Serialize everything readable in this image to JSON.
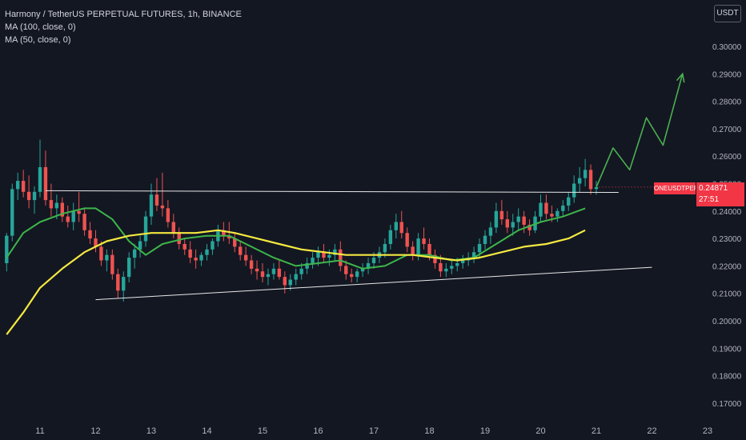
{
  "legend": {
    "title": "Harmony / TetherUS PERPETUAL FUTURES, 1h, BINANCE",
    "ma100": "MA (100, close, 0)",
    "ma50": "MA (50, close, 0)"
  },
  "currency_label": "USDT",
  "price_tag": {
    "symbol": "ONEUSDTPERP",
    "price": "0.24871",
    "countdown": "27:51"
  },
  "colors": {
    "background": "#131722",
    "up": "#26a69a",
    "down": "#ef5350",
    "ma50": "#3eb54a",
    "ma100": "#f5e940",
    "forecast": "#4caf50",
    "trendline": "#e8e8e8",
    "price_tag": "#f23645"
  },
  "chart_data": {
    "type": "candlestick",
    "title": "Harmony / TetherUS PERPETUAL FUTURES, 1h, BINANCE",
    "x_ticks": [
      "11",
      "12",
      "13",
      "14",
      "15",
      "16",
      "17",
      "18",
      "19",
      "20",
      "21",
      "22",
      "23"
    ],
    "y_ticks": [
      "0.30000",
      "0.29000",
      "0.28000",
      "0.27000",
      "0.26000",
      "0.25000",
      "0.24000",
      "0.23000",
      "0.22000",
      "0.21000",
      "0.20000",
      "0.19000",
      "0.18000",
      "0.17000"
    ],
    "ylim": [
      0.165,
      0.312
    ],
    "xlim": [
      10.4,
      23.6
    ],
    "last_price": 0.24871,
    "candles_approx": [
      [
        10.4,
        0.221,
        0.232,
        0.218,
        0.231
      ],
      [
        10.5,
        0.231,
        0.25,
        0.229,
        0.248
      ],
      [
        10.6,
        0.248,
        0.254,
        0.244,
        0.251
      ],
      [
        10.7,
        0.251,
        0.255,
        0.245,
        0.247
      ],
      [
        10.8,
        0.247,
        0.253,
        0.241,
        0.244
      ],
      [
        10.9,
        0.244,
        0.249,
        0.239,
        0.247
      ],
      [
        11.0,
        0.247,
        0.266,
        0.245,
        0.256
      ],
      [
        11.1,
        0.256,
        0.262,
        0.242,
        0.244
      ],
      [
        11.2,
        0.244,
        0.25,
        0.238,
        0.241
      ],
      [
        11.3,
        0.241,
        0.246,
        0.237,
        0.243
      ],
      [
        11.4,
        0.243,
        0.245,
        0.236,
        0.238
      ],
      [
        11.5,
        0.238,
        0.242,
        0.234,
        0.236
      ],
      [
        11.6,
        0.236,
        0.243,
        0.233,
        0.24
      ],
      [
        11.7,
        0.24,
        0.247,
        0.236,
        0.239
      ],
      [
        11.8,
        0.239,
        0.241,
        0.231,
        0.233
      ],
      [
        11.9,
        0.233,
        0.236,
        0.228,
        0.23
      ],
      [
        12.0,
        0.23,
        0.233,
        0.225,
        0.227
      ],
      [
        12.1,
        0.227,
        0.229,
        0.22,
        0.222
      ],
      [
        12.2,
        0.222,
        0.226,
        0.218,
        0.224
      ],
      [
        12.3,
        0.224,
        0.226,
        0.215,
        0.217
      ],
      [
        12.4,
        0.217,
        0.219,
        0.208,
        0.211
      ],
      [
        12.5,
        0.211,
        0.218,
        0.207,
        0.216
      ],
      [
        12.6,
        0.216,
        0.225,
        0.214,
        0.223
      ],
      [
        12.7,
        0.223,
        0.228,
        0.219,
        0.226
      ],
      [
        12.8,
        0.226,
        0.231,
        0.223,
        0.229
      ],
      [
        12.9,
        0.229,
        0.24,
        0.227,
        0.238
      ],
      [
        13.0,
        0.238,
        0.25,
        0.235,
        0.246
      ],
      [
        13.1,
        0.246,
        0.252,
        0.24,
        0.242
      ],
      [
        13.2,
        0.242,
        0.254,
        0.238,
        0.241
      ],
      [
        13.3,
        0.241,
        0.244,
        0.234,
        0.236
      ],
      [
        13.4,
        0.236,
        0.239,
        0.23,
        0.232
      ],
      [
        13.5,
        0.232,
        0.234,
        0.226,
        0.228
      ],
      [
        13.6,
        0.228,
        0.23,
        0.224,
        0.226
      ],
      [
        13.7,
        0.226,
        0.229,
        0.221,
        0.223
      ],
      [
        13.8,
        0.223,
        0.226,
        0.219,
        0.222
      ],
      [
        13.9,
        0.222,
        0.225,
        0.22,
        0.224
      ],
      [
        14.0,
        0.224,
        0.228,
        0.222,
        0.226
      ],
      [
        14.1,
        0.226,
        0.23,
        0.224,
        0.229
      ],
      [
        14.2,
        0.229,
        0.235,
        0.227,
        0.233
      ],
      [
        14.3,
        0.233,
        0.236,
        0.229,
        0.231
      ],
      [
        14.4,
        0.231,
        0.236,
        0.228,
        0.23
      ],
      [
        14.5,
        0.23,
        0.232,
        0.225,
        0.227
      ],
      [
        14.6,
        0.227,
        0.229,
        0.222,
        0.224
      ],
      [
        14.7,
        0.224,
        0.227,
        0.22,
        0.222
      ],
      [
        14.8,
        0.222,
        0.224,
        0.217,
        0.219
      ],
      [
        14.9,
        0.219,
        0.222,
        0.215,
        0.218
      ],
      [
        15.0,
        0.218,
        0.221,
        0.214,
        0.216
      ],
      [
        15.1,
        0.216,
        0.219,
        0.213,
        0.217
      ],
      [
        15.2,
        0.217,
        0.221,
        0.215,
        0.219
      ],
      [
        15.3,
        0.219,
        0.222,
        0.215,
        0.216
      ],
      [
        15.4,
        0.216,
        0.218,
        0.21,
        0.213
      ],
      [
        15.5,
        0.213,
        0.217,
        0.211,
        0.215
      ],
      [
        15.6,
        0.215,
        0.219,
        0.213,
        0.217
      ],
      [
        15.7,
        0.217,
        0.221,
        0.215,
        0.219
      ],
      [
        15.8,
        0.219,
        0.223,
        0.217,
        0.221
      ],
      [
        15.9,
        0.221,
        0.225,
        0.219,
        0.223
      ],
      [
        16.0,
        0.223,
        0.227,
        0.22,
        0.225
      ],
      [
        16.1,
        0.225,
        0.228,
        0.221,
        0.223
      ],
      [
        16.2,
        0.223,
        0.226,
        0.22,
        0.224
      ],
      [
        16.3,
        0.224,
        0.228,
        0.222,
        0.226
      ],
      [
        16.4,
        0.226,
        0.229,
        0.218,
        0.22
      ],
      [
        16.5,
        0.22,
        0.222,
        0.215,
        0.217
      ],
      [
        16.6,
        0.217,
        0.219,
        0.214,
        0.216
      ],
      [
        16.7,
        0.216,
        0.219,
        0.214,
        0.218
      ],
      [
        16.8,
        0.218,
        0.221,
        0.216,
        0.219
      ],
      [
        16.9,
        0.219,
        0.223,
        0.217,
        0.221
      ],
      [
        17.0,
        0.221,
        0.225,
        0.219,
        0.223
      ],
      [
        17.1,
        0.223,
        0.227,
        0.221,
        0.225
      ],
      [
        17.2,
        0.225,
        0.23,
        0.223,
        0.228
      ],
      [
        17.3,
        0.228,
        0.235,
        0.226,
        0.233
      ],
      [
        17.4,
        0.233,
        0.239,
        0.23,
        0.236
      ],
      [
        17.5,
        0.236,
        0.24,
        0.23,
        0.232
      ],
      [
        17.6,
        0.232,
        0.234,
        0.225,
        0.227
      ],
      [
        17.7,
        0.227,
        0.229,
        0.222,
        0.224
      ],
      [
        17.8,
        0.224,
        0.232,
        0.222,
        0.23
      ],
      [
        17.9,
        0.23,
        0.234,
        0.226,
        0.228
      ],
      [
        18.0,
        0.228,
        0.23,
        0.222,
        0.224
      ],
      [
        18.1,
        0.224,
        0.226,
        0.219,
        0.221
      ],
      [
        18.2,
        0.221,
        0.224,
        0.216,
        0.218
      ],
      [
        18.3,
        0.218,
        0.221,
        0.216,
        0.219
      ],
      [
        18.4,
        0.219,
        0.222,
        0.217,
        0.22
      ],
      [
        18.5,
        0.22,
        0.223,
        0.218,
        0.221
      ],
      [
        18.6,
        0.221,
        0.224,
        0.219,
        0.222
      ],
      [
        18.7,
        0.222,
        0.225,
        0.22,
        0.223
      ],
      [
        18.8,
        0.223,
        0.227,
        0.221,
        0.225
      ],
      [
        18.9,
        0.225,
        0.23,
        0.223,
        0.228
      ],
      [
        19.0,
        0.228,
        0.233,
        0.226,
        0.231
      ],
      [
        19.1,
        0.231,
        0.236,
        0.228,
        0.234
      ],
      [
        19.2,
        0.234,
        0.243,
        0.232,
        0.24
      ],
      [
        19.3,
        0.24,
        0.244,
        0.235,
        0.237
      ],
      [
        19.4,
        0.237,
        0.24,
        0.232,
        0.234
      ],
      [
        19.5,
        0.234,
        0.239,
        0.231,
        0.236
      ],
      [
        19.6,
        0.236,
        0.241,
        0.233,
        0.238
      ],
      [
        19.7,
        0.238,
        0.24,
        0.232,
        0.235
      ],
      [
        19.8,
        0.235,
        0.237,
        0.231,
        0.233
      ],
      [
        19.9,
        0.233,
        0.24,
        0.232,
        0.238
      ],
      [
        20.0,
        0.238,
        0.246,
        0.236,
        0.243
      ],
      [
        20.1,
        0.243,
        0.246,
        0.237,
        0.239
      ],
      [
        20.2,
        0.239,
        0.242,
        0.236,
        0.238
      ],
      [
        20.3,
        0.238,
        0.241,
        0.236,
        0.24
      ],
      [
        20.4,
        0.24,
        0.244,
        0.238,
        0.242
      ],
      [
        20.5,
        0.242,
        0.247,
        0.24,
        0.245
      ],
      [
        20.6,
        0.245,
        0.253,
        0.243,
        0.25
      ],
      [
        20.7,
        0.25,
        0.256,
        0.247,
        0.252
      ],
      [
        20.8,
        0.252,
        0.259,
        0.249,
        0.255
      ],
      [
        20.9,
        0.255,
        0.257,
        0.246,
        0.248
      ],
      [
        21.0,
        0.248,
        0.251,
        0.246,
        0.2487
      ]
    ],
    "ma50_approx": [
      [
        10.4,
        0.223
      ],
      [
        10.7,
        0.232
      ],
      [
        11.0,
        0.236
      ],
      [
        11.4,
        0.239
      ],
      [
        11.8,
        0.241
      ],
      [
        12.0,
        0.241
      ],
      [
        12.3,
        0.237
      ],
      [
        12.6,
        0.229
      ],
      [
        12.9,
        0.224
      ],
      [
        13.2,
        0.228
      ],
      [
        13.6,
        0.23
      ],
      [
        14.0,
        0.231
      ],
      [
        14.4,
        0.231
      ],
      [
        14.8,
        0.227
      ],
      [
        15.2,
        0.223
      ],
      [
        15.6,
        0.22
      ],
      [
        16.0,
        0.221
      ],
      [
        16.4,
        0.222
      ],
      [
        16.8,
        0.219
      ],
      [
        17.2,
        0.22
      ],
      [
        17.6,
        0.224
      ],
      [
        18.0,
        0.224
      ],
      [
        18.4,
        0.222
      ],
      [
        18.8,
        0.223
      ],
      [
        19.2,
        0.228
      ],
      [
        19.6,
        0.233
      ],
      [
        20.0,
        0.236
      ],
      [
        20.4,
        0.238
      ],
      [
        20.8,
        0.241
      ]
    ],
    "ma100_approx": [
      [
        10.4,
        0.195
      ],
      [
        10.7,
        0.203
      ],
      [
        11.0,
        0.212
      ],
      [
        11.4,
        0.219
      ],
      [
        11.8,
        0.225
      ],
      [
        12.2,
        0.229
      ],
      [
        12.6,
        0.231
      ],
      [
        13.0,
        0.232
      ],
      [
        13.4,
        0.232
      ],
      [
        13.8,
        0.232
      ],
      [
        14.2,
        0.233
      ],
      [
        14.5,
        0.232
      ],
      [
        14.9,
        0.23
      ],
      [
        15.3,
        0.228
      ],
      [
        15.7,
        0.226
      ],
      [
        16.1,
        0.225
      ],
      [
        16.5,
        0.224
      ],
      [
        16.9,
        0.224
      ],
      [
        17.3,
        0.224
      ],
      [
        17.7,
        0.224
      ],
      [
        18.1,
        0.223
      ],
      [
        18.5,
        0.222
      ],
      [
        18.9,
        0.223
      ],
      [
        19.3,
        0.225
      ],
      [
        19.7,
        0.227
      ],
      [
        20.1,
        0.228
      ],
      [
        20.5,
        0.23
      ],
      [
        20.8,
        0.233
      ]
    ],
    "resistance_line": [
      [
        11.1,
        0.2474
      ],
      [
        21.4,
        0.2468
      ]
    ],
    "support_line": [
      [
        12.0,
        0.2077
      ],
      [
        22.0,
        0.2195
      ]
    ],
    "forecast_path": [
      [
        21.0,
        0.2487
      ],
      [
        21.3,
        0.263
      ],
      [
        21.6,
        0.255
      ],
      [
        21.9,
        0.274
      ],
      [
        22.2,
        0.264
      ],
      [
        22.55,
        0.29
      ]
    ]
  }
}
